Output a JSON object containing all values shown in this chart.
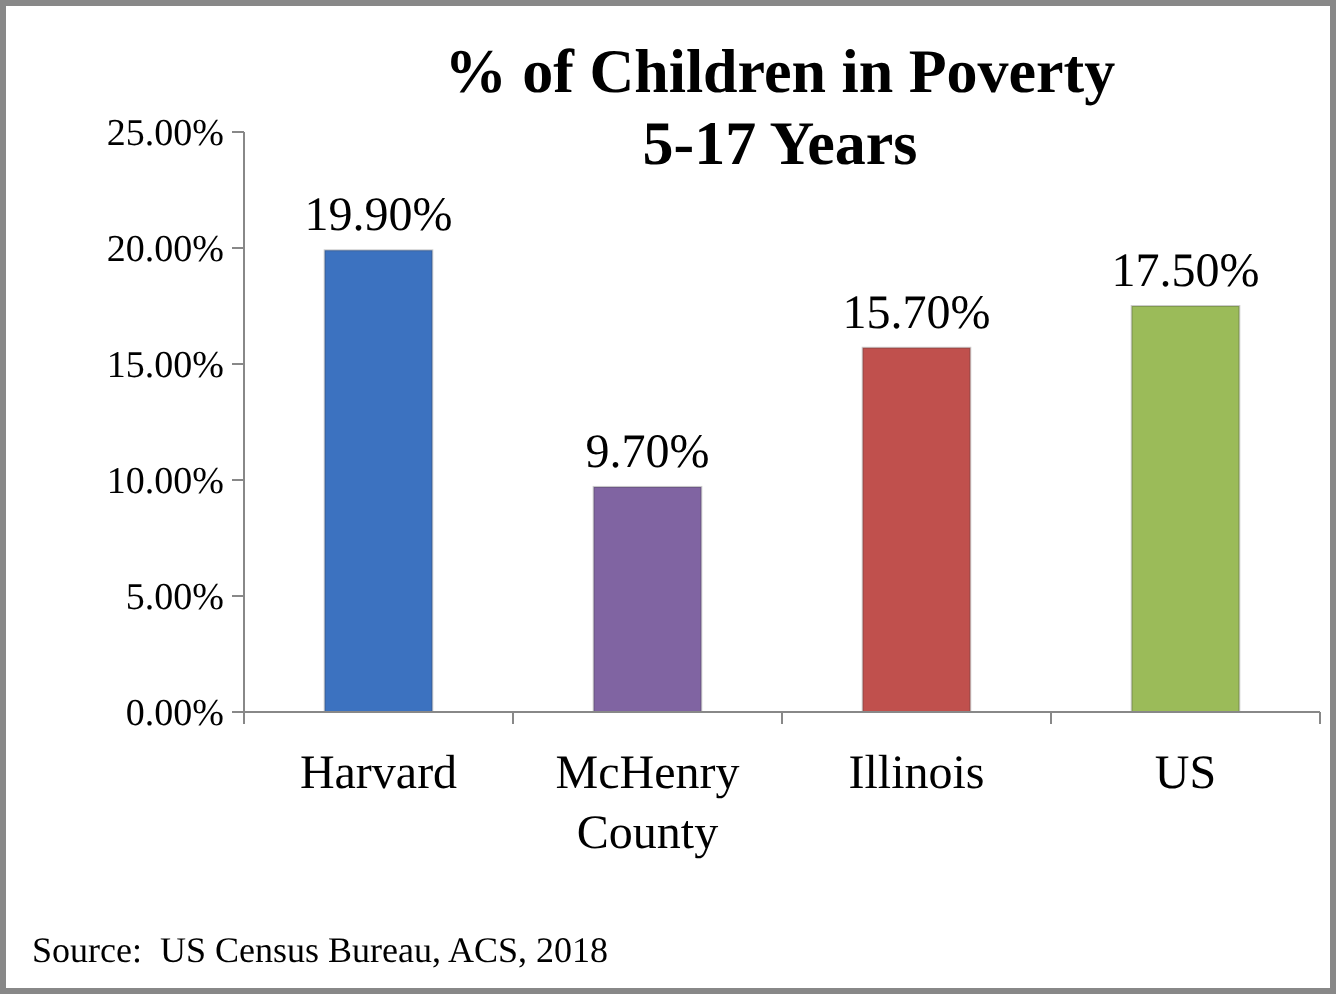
{
  "chart_data": {
    "type": "bar",
    "title": "% of Children in Poverty\n5-17 Years",
    "categories": [
      "Harvard",
      "McHenry\nCounty",
      "Illinois",
      "US"
    ],
    "values": [
      19.9,
      9.7,
      15.7,
      17.5
    ],
    "colors": [
      "#3c72c0",
      "#8064a2",
      "#c0504d",
      "#9bbb59"
    ],
    "value_labels": [
      "19.90%",
      "9.70%",
      "15.70%",
      "17.50%"
    ],
    "ylim": [
      0,
      25
    ],
    "yticks": [
      {
        "value": 0,
        "label": "0.00%"
      },
      {
        "value": 5,
        "label": "5.00%"
      },
      {
        "value": 10,
        "label": "10.00%"
      },
      {
        "value": 15,
        "label": "15.00%"
      },
      {
        "value": 20,
        "label": "20.00%"
      },
      {
        "value": 25,
        "label": "25.00%"
      }
    ],
    "grid": false,
    "annotations": [
      "Source:  US Census Bureau, ACS, 2018"
    ]
  }
}
